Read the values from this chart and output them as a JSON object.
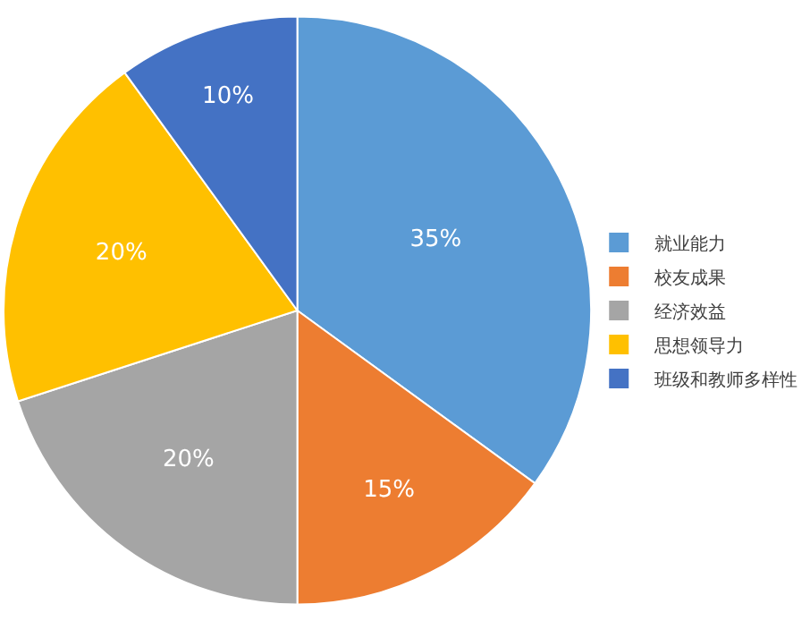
{
  "chart_data": {
    "type": "pie",
    "categories": [
      "就业能力",
      "校友成果",
      "经济效益",
      "思想领导力",
      "班级和教师多样性"
    ],
    "values": [
      35,
      15,
      20,
      20,
      10
    ],
    "value_labels": [
      "35%",
      "15%",
      "20%",
      "20%",
      "10%"
    ],
    "colors": [
      "#5b9bd5",
      "#ed7d31",
      "#a5a5a5",
      "#ffc000",
      "#4472c4"
    ],
    "legend": "right"
  }
}
